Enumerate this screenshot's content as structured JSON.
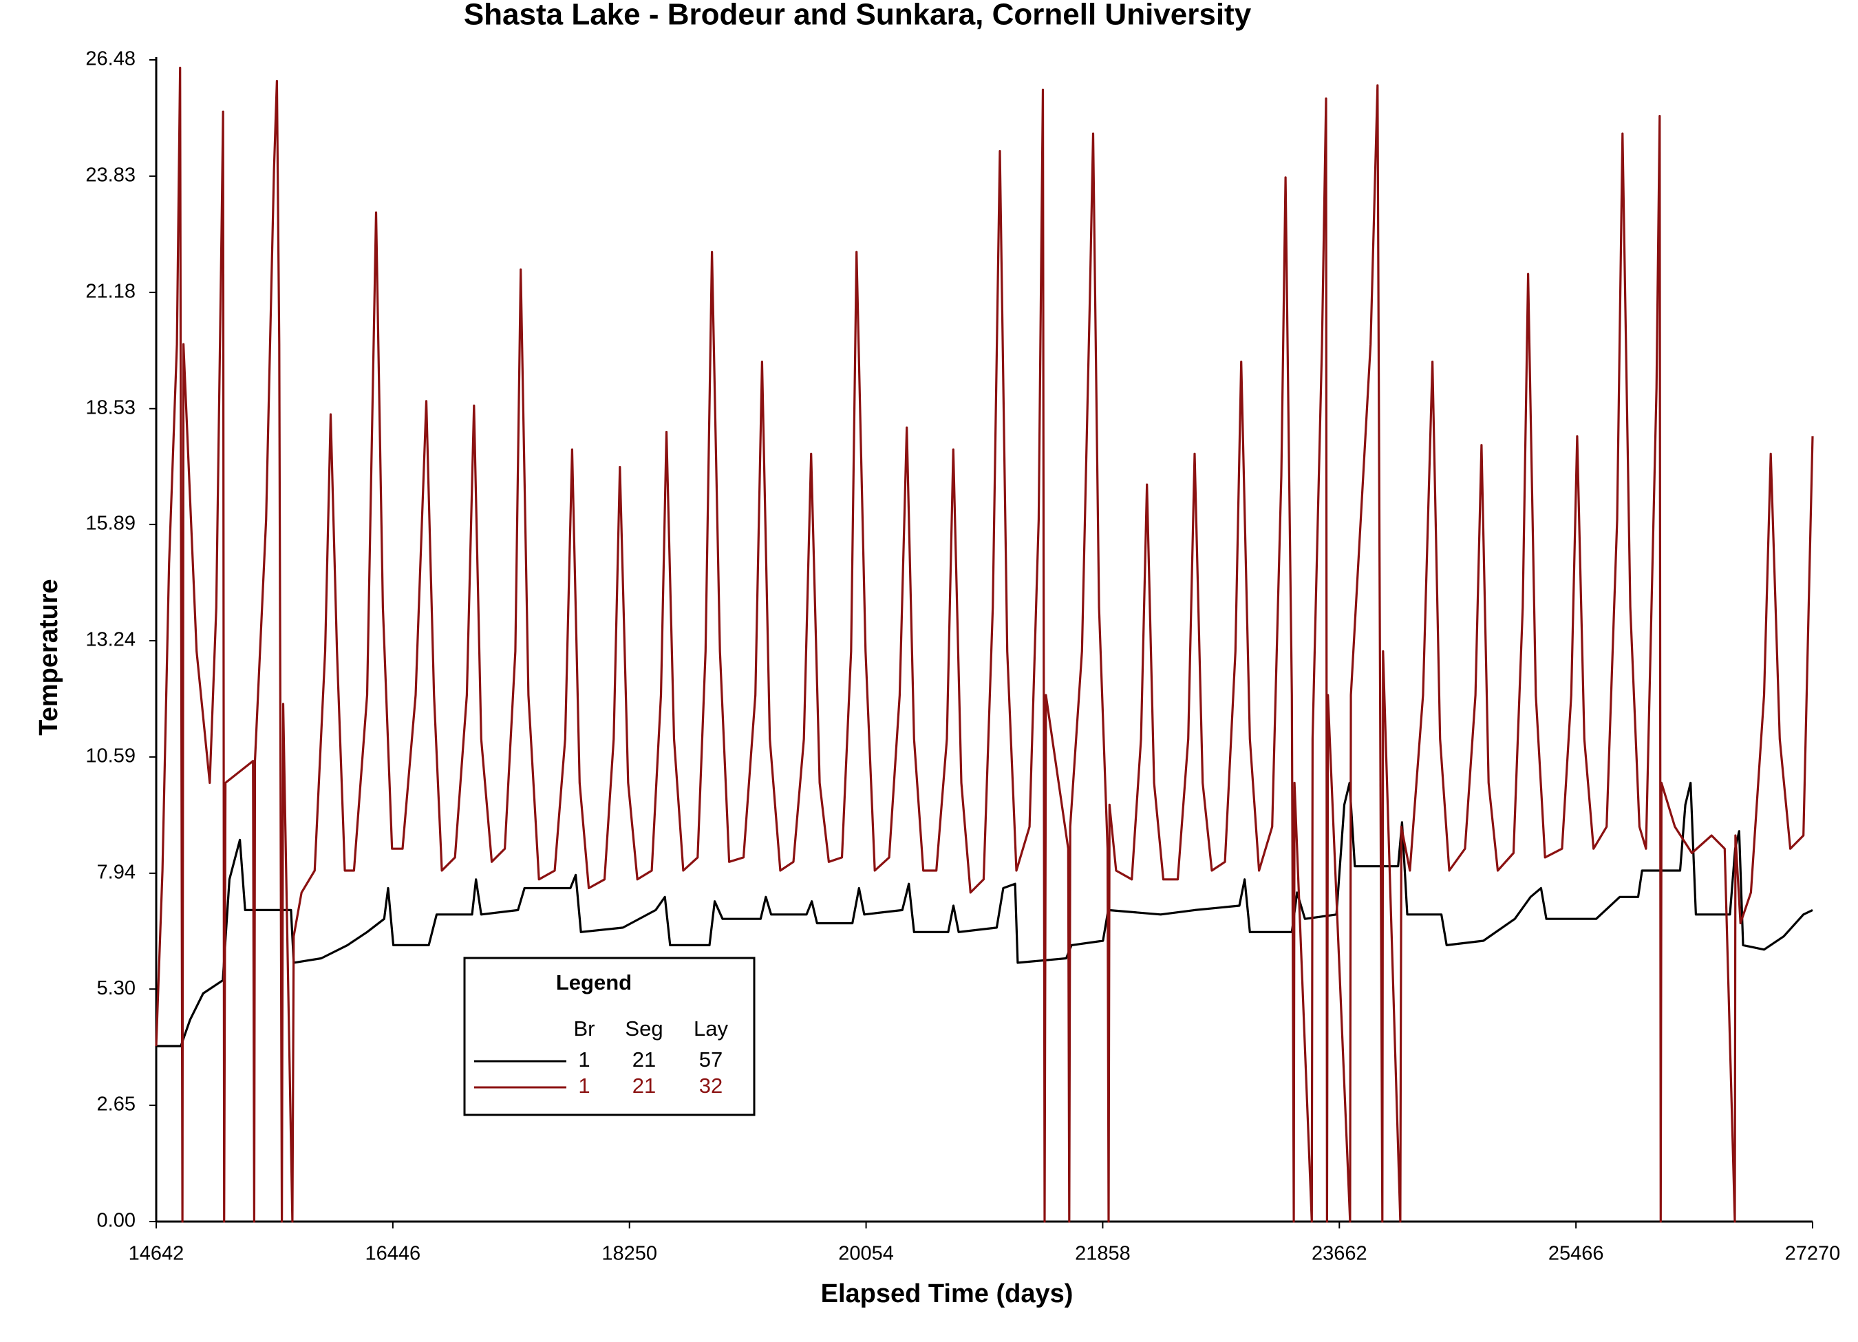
{
  "chart_data": {
    "type": "line",
    "title": "Shasta Lake - Brodeur and Sunkara, Cornell University",
    "x_label": "Elapsed Time (days)",
    "y_label": "Temperature",
    "xlim": [
      14642,
      27270
    ],
    "xticks": [
      14642,
      16446,
      18250,
      20054,
      21858,
      23662,
      25466,
      27270
    ],
    "ylim": [
      0,
      26.48
    ],
    "yticks": [
      {
        "value": 0,
        "label": "0.00"
      },
      2.65,
      {
        "value": 5.3,
        "label": "5.30"
      },
      7.94,
      10.59,
      13.24,
      15.89,
      18.53,
      21.18,
      23.83,
      26.48
    ],
    "legend_title": "Legend",
    "legend_columns": [
      "Br",
      "Seg",
      "Lay"
    ],
    "series": [
      {
        "color": "#000000",
        "legend": [
          1,
          21,
          57
        ],
        "x": [
          14642,
          14830,
          14900,
          15000,
          15150,
          15200,
          15280,
          15320,
          15670,
          15690,
          15900,
          16100,
          16250,
          16380,
          16410,
          16450,
          16720,
          16780,
          17050,
          17080,
          17120,
          17400,
          17450,
          17800,
          17840,
          17880,
          18200,
          18450,
          18520,
          18560,
          18860,
          18900,
          18960,
          19250,
          19290,
          19330,
          19600,
          19640,
          19680,
          19950,
          20000,
          20040,
          20330,
          20380,
          20420,
          20680,
          20720,
          20760,
          21050,
          21100,
          21190,
          21210,
          21580,
          21620,
          21860,
          21900,
          22300,
          22560,
          22900,
          22940,
          22980,
          23300,
          23340,
          23400,
          23640,
          23700,
          23740,
          23780,
          24110,
          24140,
          24180,
          24440,
          24480,
          24760,
          25000,
          25120,
          25200,
          25240,
          25620,
          25800,
          25940,
          25970,
          26260,
          26300,
          26340,
          26380,
          26640,
          26680,
          26710,
          26740,
          26900,
          27050,
          27200,
          27270
        ],
        "values": [
          4.0,
          4.0,
          4.6,
          5.2,
          5.5,
          7.8,
          8.7,
          7.1,
          7.1,
          5.9,
          6.0,
          6.3,
          6.6,
          6.9,
          7.6,
          6.3,
          6.3,
          7.0,
          7.0,
          7.8,
          7.0,
          7.1,
          7.6,
          7.6,
          7.9,
          6.6,
          6.7,
          7.1,
          7.4,
          6.3,
          6.3,
          7.3,
          6.9,
          6.9,
          7.4,
          7.0,
          7.0,
          7.3,
          6.8,
          6.8,
          7.6,
          7.0,
          7.1,
          7.7,
          6.6,
          6.6,
          7.2,
          6.6,
          6.7,
          7.6,
          7.7,
          5.9,
          6.0,
          6.3,
          6.4,
          7.1,
          7.0,
          7.1,
          7.2,
          7.8,
          6.6,
          6.6,
          7.5,
          6.9,
          7.0,
          9.5,
          10.0,
          8.1,
          8.1,
          9.1,
          7.0,
          7.0,
          6.3,
          6.4,
          6.9,
          7.4,
          7.6,
          6.9,
          6.9,
          7.4,
          7.4,
          8.0,
          8.0,
          9.5,
          10.0,
          7.0,
          7.0,
          8.5,
          8.9,
          6.3,
          6.2,
          6.5,
          7.0,
          7.1
        ]
      },
      {
        "color": "#8b1111",
        "legend": [
          1,
          21,
          32
        ],
        "x": [
          14642,
          14690,
          14740,
          14800,
          14824,
          14842,
          14850,
          14950,
          15050,
          15100,
          15140,
          15152,
          15160,
          15170,
          15380,
          15389,
          15395,
          15480,
          15540,
          15562,
          15580,
          15600,
          15610,
          15680,
          15690,
          15750,
          15850,
          15930,
          15972,
          16020,
          16080,
          16150,
          16250,
          16318,
          16370,
          16440,
          16520,
          16620,
          16701,
          16760,
          16820,
          16920,
          17010,
          17065,
          17120,
          17200,
          17300,
          17380,
          17421,
          17480,
          17560,
          17680,
          17760,
          17813,
          17870,
          17940,
          18060,
          18130,
          18177,
          18240,
          18310,
          18420,
          18490,
          18532,
          18590,
          18660,
          18770,
          18830,
          18879,
          18940,
          19010,
          19120,
          19210,
          19261,
          19320,
          19400,
          19500,
          19580,
          19635,
          19700,
          19770,
          19870,
          19940,
          19981,
          20050,
          20120,
          20230,
          20310,
          20364,
          20420,
          20490,
          20590,
          20670,
          20719,
          20780,
          20850,
          20950,
          21020,
          21074,
          21130,
          21200,
          21300,
          21370,
          21402,
          21415,
          21425,
          21595,
          21603,
          21610,
          21700,
          21760,
          21785,
          21830,
          21895,
          21903,
          21910,
          21960,
          22080,
          22150,
          22195,
          22250,
          22320,
          22430,
          22510,
          22559,
          22620,
          22690,
          22790,
          22870,
          22914,
          22980,
          23050,
          23150,
          23220,
          23252,
          23300,
          23315,
          23320,
          23452,
          23458,
          23530,
          23561,
          23568,
          23575,
          23744,
          23750,
          23900,
          23953,
          23990,
          23995,
          24127,
          24135,
          24200,
          24300,
          24372,
          24430,
          24500,
          24620,
          24700,
          24746,
          24800,
          24870,
          24990,
          25060,
          25101,
          25160,
          25230,
          25360,
          25430,
          25475,
          25530,
          25600,
          25700,
          25780,
          25821,
          25880,
          25950,
          26000,
          26080,
          26104,
          26112,
          26118,
          26220,
          26350,
          26500,
          26600,
          26677,
          26682,
          26720,
          26800,
          26900,
          26951,
          27020,
          27100,
          27200,
          27270
        ],
        "values": [
          4.0,
          8.0,
          15.0,
          20.0,
          26.3,
          0,
          20.0,
          13.0,
          10.0,
          14.0,
          22.5,
          25.3,
          0,
          10.0,
          10.5,
          0,
          10.5,
          16.0,
          24.0,
          26.0,
          20.0,
          0,
          11.8,
          0,
          6.5,
          7.5,
          8.0,
          13.0,
          18.4,
          13.0,
          8.0,
          8.0,
          12.0,
          23.0,
          14.0,
          8.5,
          8.5,
          12.0,
          18.7,
          12.0,
          8.0,
          8.3,
          12.0,
          18.6,
          11.0,
          8.2,
          8.5,
          13.0,
          21.7,
          12.0,
          7.8,
          8.0,
          11.0,
          17.6,
          10.0,
          7.6,
          7.8,
          11.0,
          17.2,
          10.0,
          7.8,
          8.0,
          12.0,
          18.0,
          11.0,
          8.0,
          8.3,
          13.0,
          22.1,
          13.0,
          8.2,
          8.3,
          12.0,
          19.6,
          11.0,
          8.0,
          8.2,
          11.0,
          17.5,
          10.0,
          8.2,
          8.3,
          13.0,
          22.1,
          13.0,
          8.0,
          8.3,
          12.0,
          18.1,
          11.0,
          8.0,
          8.0,
          11.0,
          17.6,
          10.0,
          7.5,
          7.8,
          14.0,
          24.4,
          13.0,
          8.0,
          9.0,
          16.0,
          25.8,
          0,
          12.0,
          8.5,
          0,
          9.0,
          13.0,
          21.0,
          24.8,
          14.0,
          8.5,
          0,
          9.5,
          8.0,
          7.8,
          11.0,
          16.8,
          10.0,
          7.8,
          7.8,
          11.0,
          17.5,
          10.0,
          8.0,
          8.2,
          13.0,
          19.6,
          11.0,
          8.0,
          9.0,
          17.0,
          23.8,
          12.0,
          0,
          10.0,
          0,
          11.0,
          20.0,
          25.6,
          0,
          12.0,
          0,
          12.0,
          20.0,
          25.9,
          0,
          13.0,
          0,
          9.0,
          8.0,
          12.0,
          19.6,
          11.0,
          8.0,
          8.5,
          12.0,
          17.7,
          10.0,
          8.0,
          8.4,
          14.0,
          21.6,
          12.0,
          8.3,
          8.5,
          12.0,
          17.9,
          11.0,
          8.5,
          9.0,
          16.0,
          24.8,
          14.0,
          9.0,
          8.5,
          19.0,
          25.2,
          0,
          10.0,
          9.0,
          8.4,
          8.8,
          8.5,
          0,
          8.8,
          6.8,
          7.5,
          12.0,
          17.5,
          11.0,
          8.5,
          8.8,
          17.9
        ]
      }
    ]
  }
}
